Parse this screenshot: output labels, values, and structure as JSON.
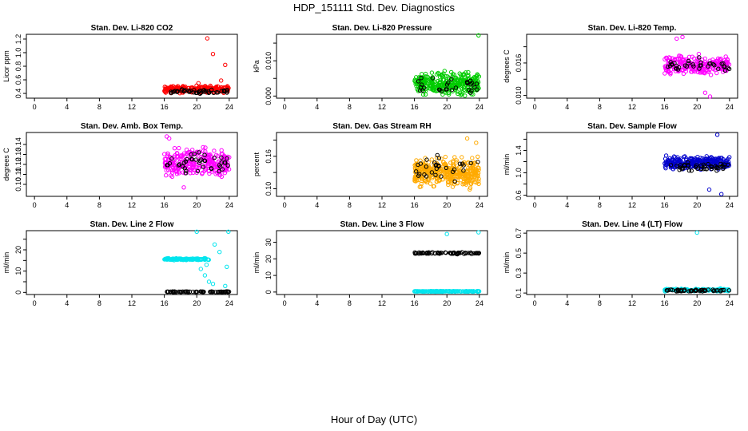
{
  "title": "HDP_151111  Std. Dev. Diagnostics",
  "xlabel": "Hour of Day (UTC)",
  "chart_data": [
    {
      "type": "scatter",
      "title": "Stan. Dev. Li-820 CO2",
      "ylabel": "Licor ppm",
      "xlim": [
        -1,
        25
      ],
      "xticks": [
        0,
        4,
        8,
        12,
        16,
        20,
        24
      ],
      "ylim": [
        0.33,
        1.27
      ],
      "yticks": [
        0.4,
        0.6,
        0.8,
        1.0,
        1.2
      ],
      "ytick_labels": [
        "0.4",
        "0.6",
        "0.8",
        "1.0",
        "1.2"
      ],
      "series": [
        {
          "name": "main",
          "color": "#ff0000",
          "range": [
            16,
            24
          ],
          "base": 0.46,
          "spread": 0.07,
          "count": 260,
          "outliers": [
            [
              21.3,
              1.21
            ],
            [
              22.0,
              0.98
            ],
            [
              23.5,
              0.82
            ],
            [
              23.0,
              0.59
            ],
            [
              20.2,
              0.55
            ]
          ]
        },
        {
          "name": "black",
          "color": "#000000",
          "range": [
            16.2,
            24
          ],
          "base": 0.43,
          "spread": 0.04,
          "count": 45
        }
      ]
    },
    {
      "type": "scatter",
      "title": "Stan. Dev. Li-820 Pressure",
      "ylabel": "kPa",
      "xlim": [
        -1,
        25
      ],
      "xticks": [
        0,
        4,
        8,
        12,
        16,
        20,
        24
      ],
      "ylim": [
        -0.0006,
        0.0175
      ],
      "yticks": [
        0,
        0.005,
        0.01,
        0.015
      ],
      "ytick_labels": [
        "0.000",
        "",
        "0.010",
        ""
      ],
      "series": [
        {
          "name": "main",
          "color": "#00cc00",
          "range": [
            16,
            24
          ],
          "base": 0.0035,
          "spread": 0.0042,
          "count": 320,
          "outliers": [
            [
              23.9,
              0.0172
            ]
          ]
        },
        {
          "name": "black",
          "color": "#000000",
          "range": [
            16.2,
            24
          ],
          "base": 0.0025,
          "spread": 0.0035,
          "count": 30
        }
      ]
    },
    {
      "type": "scatter",
      "title": "Stan. Dev. Li-820 Temp.",
      "ylabel": "degrees C",
      "xlim": [
        -1,
        25
      ],
      "xticks": [
        0,
        4,
        8,
        12,
        16,
        20,
        24
      ],
      "ylim": [
        0.0095,
        0.0213
      ],
      "yticks": [
        0.01,
        0.013,
        0.016,
        0.019
      ],
      "ytick_labels": [
        "0.010",
        "",
        "0.016",
        ""
      ],
      "series": [
        {
          "name": "main",
          "color": "#ff00ff",
          "range": [
            16,
            24
          ],
          "base": 0.0155,
          "spread": 0.0025,
          "count": 240,
          "outliers": [
            [
              17.5,
              0.0205
            ],
            [
              18.2,
              0.0208
            ],
            [
              21.0,
              0.0105
            ],
            [
              21.6,
              0.0098
            ]
          ]
        },
        {
          "name": "black",
          "color": "#000000",
          "range": [
            16.2,
            24
          ],
          "base": 0.0155,
          "spread": 0.0018,
          "count": 35
        }
      ]
    },
    {
      "type": "scatter",
      "title": "Stan. Dev. Amb. Box Temp.",
      "ylabel": "degrees C",
      "xlim": [
        -1,
        25
      ],
      "xticks": [
        0,
        4,
        8,
        12,
        16,
        20,
        24
      ],
      "ylim": [
        0.088,
        0.152
      ],
      "yticks": [
        0.1,
        0.11,
        0.12,
        0.13,
        0.14
      ],
      "ytick_labels": [
        "0.10",
        "0.11",
        "0.12",
        "0.13",
        "0.14"
      ],
      "series": [
        {
          "name": "main",
          "color": "#ff00ff",
          "range": [
            16,
            24
          ],
          "base": 0.122,
          "spread": 0.02,
          "count": 260,
          "outliers": [
            [
              16.3,
              0.148
            ],
            [
              16.6,
              0.146
            ],
            [
              18.4,
              0.097
            ]
          ]
        },
        {
          "name": "black",
          "color": "#000000",
          "range": [
            16.2,
            24
          ],
          "base": 0.121,
          "spread": 0.015,
          "count": 40
        }
      ]
    },
    {
      "type": "scatter",
      "title": "Stan. Dev. Gas Stream RH",
      "ylabel": "percent",
      "xlim": [
        -1,
        25
      ],
      "xticks": [
        0,
        4,
        8,
        12,
        16,
        20,
        24
      ],
      "ylim": [
        0.086,
        0.204
      ],
      "yticks": [
        0.1,
        0.13,
        0.16,
        0.19
      ],
      "ytick_labels": [
        "0.10",
        "",
        "0.16",
        ""
      ],
      "series": [
        {
          "name": "main",
          "color": "#ffaa00",
          "range": [
            16,
            24
          ],
          "base": 0.13,
          "spread": 0.036,
          "count": 380,
          "outliers": [
            [
              22.5,
              0.193
            ],
            [
              23.6,
              0.185
            ]
          ]
        },
        {
          "name": "black",
          "color": "#000000",
          "range": [
            16.2,
            24
          ],
          "base": 0.14,
          "spread": 0.03,
          "count": 30
        }
      ]
    },
    {
      "type": "scatter",
      "title": "Stan. Dev. Sample Flow",
      "ylabel": "ml/min",
      "xlim": [
        -1,
        25
      ],
      "xticks": [
        0,
        4,
        8,
        12,
        16,
        20,
        24
      ],
      "ylim": [
        0.58,
        1.72
      ],
      "yticks": [
        0.6,
        0.8,
        1.0,
        1.2,
        1.4,
        1.6
      ],
      "ytick_labels": [
        "0.6",
        "",
        "1.0",
        "",
        "1.4",
        ""
      ],
      "series": [
        {
          "name": "main",
          "color": "#0000cc",
          "range": [
            16,
            24
          ],
          "base": 1.18,
          "spread": 0.16,
          "count": 260,
          "outliers": [
            [
              22.5,
              1.68
            ],
            [
              23.0,
              0.62
            ],
            [
              21.5,
              0.7
            ]
          ]
        },
        {
          "name": "black",
          "color": "#000000",
          "range": [
            16.2,
            24
          ],
          "base": 1.1,
          "spread": 0.1,
          "count": 40
        }
      ]
    },
    {
      "type": "scatter",
      "title": "Stan. Dev. Line 2 Flow",
      "ylabel": "ml/min",
      "xlim": [
        -1,
        25
      ],
      "xticks": [
        0,
        4,
        8,
        12,
        16,
        20,
        24
      ],
      "ylim": [
        -1,
        29
      ],
      "yticks": [
        0,
        5,
        10,
        15,
        20,
        25
      ],
      "ytick_labels": [
        "0",
        "",
        "10",
        "",
        "20",
        ""
      ],
      "series": [
        {
          "name": "main",
          "color": "#00e5ee",
          "range": [
            16,
            21.5
          ],
          "base": 15.6,
          "spread": 0.6,
          "count": 110,
          "outliers": [
            [
              20.0,
              28.5
            ],
            [
              23.9,
              28.5
            ],
            [
              22.2,
              22.5
            ],
            [
              22.8,
              19
            ],
            [
              20.5,
              11
            ],
            [
              21.0,
              8
            ],
            [
              21.5,
              5
            ],
            [
              22.0,
              4
            ],
            [
              23.5,
              3
            ],
            [
              21.2,
              13
            ],
            [
              23.7,
              12
            ]
          ]
        },
        {
          "name": "black",
          "color": "#000000",
          "range": [
            16.2,
            24
          ],
          "base": 0.3,
          "spread": 0.2,
          "count": 60
        }
      ]
    },
    {
      "type": "scatter",
      "title": "Stan. Dev. Line 3 Flow",
      "ylabel": "ml/min",
      "xlim": [
        -1,
        25
      ],
      "xticks": [
        0,
        4,
        8,
        12,
        16,
        20,
        24
      ],
      "ylim": [
        -1.5,
        37
      ],
      "yticks": [
        0,
        10,
        20,
        30
      ],
      "ytick_labels": [
        "0",
        "10",
        "20",
        "30"
      ],
      "series": [
        {
          "name": "main",
          "color": "#00e5ee",
          "range": [
            16,
            24
          ],
          "base": 0.4,
          "spread": 0.3,
          "count": 130,
          "outliers": [
            [
              20.0,
              35
            ],
            [
              23.9,
              36
            ]
          ]
        },
        {
          "name": "black",
          "color": "#000000",
          "range": [
            16,
            24
          ],
          "base": 23.5,
          "spread": 0.8,
          "count": 70
        }
      ]
    },
    {
      "type": "scatter",
      "title": "Stan. Dev. Line 4 (LT) Flow",
      "ylabel": "ml/min",
      "xlim": [
        -1,
        25
      ],
      "xticks": [
        0,
        4,
        8,
        12,
        16,
        20,
        24
      ],
      "ylim": [
        0.085,
        0.725
      ],
      "yticks": [
        0.1,
        0.3,
        0.5,
        0.7
      ],
      "ytick_labels": [
        "0.1",
        "0.3",
        "0.5",
        "0.7"
      ],
      "series": [
        {
          "name": "main",
          "color": "#00e5ee",
          "range": [
            16,
            24
          ],
          "base": 0.13,
          "spread": 0.02,
          "count": 120,
          "outliers": [
            [
              20.0,
              0.705
            ]
          ]
        },
        {
          "name": "black",
          "color": "#000000",
          "range": [
            16.2,
            24
          ],
          "base": 0.125,
          "spread": 0.015,
          "count": 50
        }
      ]
    }
  ]
}
